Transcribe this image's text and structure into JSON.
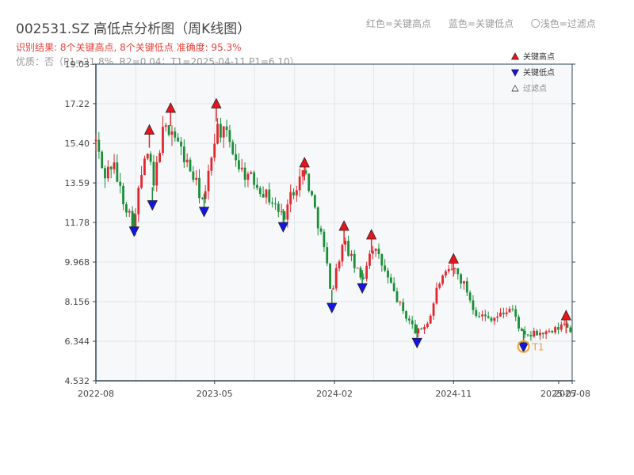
{
  "header": {
    "title": "002531.SZ 高低点分析图（周K线图）",
    "subtitle": "识别结果: 8个关键高点, 8个关键低点  准确度: 95.3%",
    "quality": "优质：否（P1=21.8%, R2=0.04；T1=2025-04-11 P1=6.10）",
    "legend_red": "红色=关键高点",
    "legend_blue": "蓝色=关键低点",
    "legend_light": "〇浅色=过滤点"
  },
  "colors": {
    "up": "#e2262e",
    "down": "#1a8f38",
    "high_marker": "#e8141c",
    "low_marker": "#1414e6",
    "t1": "#f0a030",
    "plot_bg": "#f6f8fa",
    "grid": "#e2e6ea",
    "axis": "#334455"
  },
  "chart_data": {
    "type": "candlestick",
    "y_ticks": [
      "4.532",
      "6.344",
      "8.156",
      "9.968",
      "11.78",
      "13.59",
      "15.40",
      "17.22",
      "19.03"
    ],
    "ylim": [
      4.532,
      19.03
    ],
    "x_ticks": [
      {
        "label": "2022-08",
        "date": "2022-08-01"
      },
      {
        "label": "2023-05",
        "date": "2023-05-01"
      },
      {
        "label": "2024-02",
        "date": "2024-02-01"
      },
      {
        "label": "2024-11",
        "date": "2024-11-01"
      },
      {
        "label": "2025-07",
        "date": "2025-07-01"
      },
      {
        "label": "2025-08",
        "date": "2025-08-01"
      }
    ],
    "xlim": [
      "2022-08-01",
      "2025-08-01"
    ],
    "legend": {
      "position": "top-right",
      "items": [
        {
          "label": "关键高点",
          "kind": "high"
        },
        {
          "label": "关键低点",
          "kind": "low"
        },
        {
          "label": "过滤点",
          "kind": "filtered"
        }
      ]
    },
    "key_highs": [
      {
        "date": "2022-12-02",
        "value": 16.0
      },
      {
        "date": "2023-01-20",
        "value": 17.0
      },
      {
        "date": "2023-05-05",
        "value": 17.2
      },
      {
        "date": "2023-11-24",
        "value": 14.5
      },
      {
        "date": "2024-02-23",
        "value": 11.6
      },
      {
        "date": "2024-04-26",
        "value": 11.2
      },
      {
        "date": "2024-11-01",
        "value": 10.1
      },
      {
        "date": "2025-07-18",
        "value": 7.5
      }
    ],
    "key_lows": [
      {
        "date": "2022-10-28",
        "value": 11.4
      },
      {
        "date": "2022-12-09",
        "value": 12.6
      },
      {
        "date": "2023-04-07",
        "value": 12.3
      },
      {
        "date": "2023-10-06",
        "value": 11.6
      },
      {
        "date": "2024-01-26",
        "value": 7.9
      },
      {
        "date": "2024-04-05",
        "value": 8.8
      },
      {
        "date": "2024-08-09",
        "value": 6.3
      },
      {
        "date": "2025-04-11",
        "value": 6.1
      }
    ],
    "t1": {
      "label": "T1",
      "date": "2025-04-11",
      "value": 6.1
    },
    "anchors": [
      [
        "2022-08-01",
        15.5
      ],
      [
        "2022-08-19",
        13.9
      ],
      [
        "2022-09-09",
        14.5
      ],
      [
        "2022-09-30",
        13.0
      ],
      [
        "2022-10-28",
        11.6
      ],
      [
        "2022-11-11",
        13.8
      ],
      [
        "2022-12-02",
        15.2
      ],
      [
        "2022-12-09",
        13.0
      ],
      [
        "2022-12-30",
        15.8
      ],
      [
        "2023-01-20",
        16.2
      ],
      [
        "2023-02-10",
        15.2
      ],
      [
        "2023-03-10",
        14.0
      ],
      [
        "2023-04-07",
        12.6
      ],
      [
        "2023-04-21",
        14.5
      ],
      [
        "2023-05-05",
        16.2
      ],
      [
        "2023-06-02",
        15.6
      ],
      [
        "2023-06-30",
        14.2
      ],
      [
        "2023-08-04",
        13.6
      ],
      [
        "2023-09-08",
        12.8
      ],
      [
        "2023-10-06",
        12.0
      ],
      [
        "2023-10-27",
        13.2
      ],
      [
        "2023-11-24",
        14.2
      ],
      [
        "2023-12-15",
        12.6
      ],
      [
        "2024-01-05",
        10.9
      ],
      [
        "2024-01-26",
        8.5
      ],
      [
        "2024-02-09",
        10.0
      ],
      [
        "2024-02-23",
        10.9
      ],
      [
        "2024-03-22",
        9.6
      ],
      [
        "2024-04-05",
        9.1
      ],
      [
        "2024-04-26",
        10.8
      ],
      [
        "2024-05-17",
        10.0
      ],
      [
        "2024-06-07",
        9.0
      ],
      [
        "2024-07-05",
        7.8
      ],
      [
        "2024-08-09",
        6.7
      ],
      [
        "2024-09-06",
        7.3
      ],
      [
        "2024-09-27",
        9.0
      ],
      [
        "2024-11-01",
        9.7
      ],
      [
        "2024-11-29",
        8.8
      ],
      [
        "2024-12-20",
        7.7
      ],
      [
        "2025-01-17",
        7.4
      ],
      [
        "2025-02-14",
        7.5
      ],
      [
        "2025-03-14",
        7.9
      ],
      [
        "2025-04-11",
        6.5
      ],
      [
        "2025-05-09",
        6.7
      ],
      [
        "2025-06-13",
        6.7
      ],
      [
        "2025-07-18",
        7.2
      ],
      [
        "2025-08-01",
        6.6
      ]
    ]
  }
}
